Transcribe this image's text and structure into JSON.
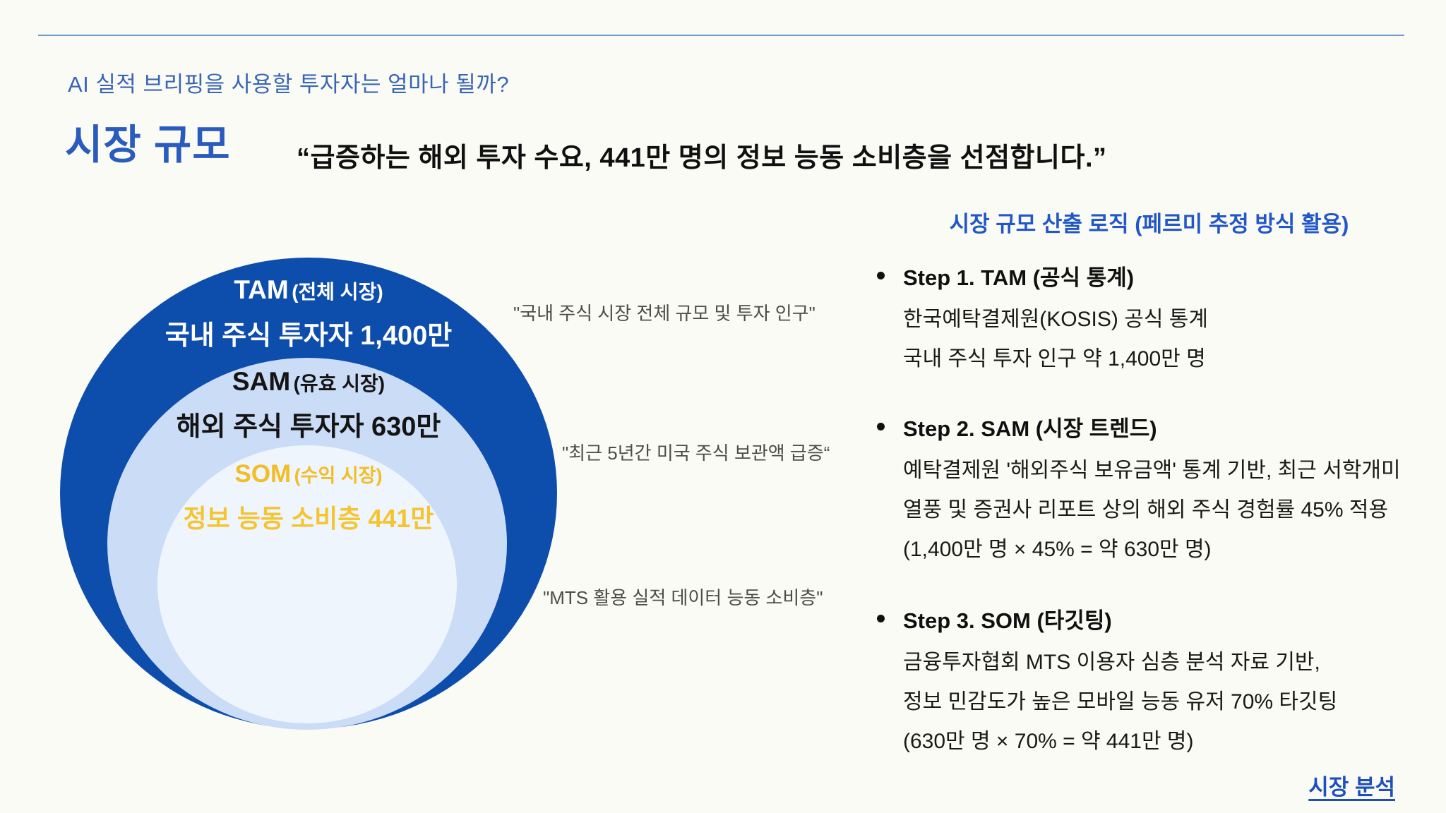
{
  "page": {
    "kicker": "AI 실적 브리핑을 사용할 투자자는 얼마나 될까?",
    "title": "시장 규모",
    "quote": "“급증하는 해외 투자 수요, 441만 명의 정보 능동 소비층을 선점합니다.”"
  },
  "venn": {
    "tam": {
      "label": "TAM",
      "sublabel": "(전체 시장)",
      "value": "국내 주식 투자자 1,400만"
    },
    "sam": {
      "label": "SAM",
      "sublabel": "(유효 시장)",
      "value": "해외 주식 투자자 630만"
    },
    "som": {
      "label": "SOM",
      "sublabel": "(수익 시장)",
      "value": "정보 능동 소비층 441만"
    },
    "annotations": [
      "\"국내 주식 시장 전체 규모 및 투자 인구\"",
      "\"최근 5년간 미국 주식 보관액 급증“",
      "\"MTS 활용 실적 데이터 능동 소비층\""
    ]
  },
  "logic_panel": {
    "title": "시장 규모 산출 로직 (페르미 추정 방식 활용)",
    "steps": [
      {
        "heading": "Step 1. TAM (공식 통계)",
        "lines": [
          "한국예탁결제원(KOSIS) 공식 통계",
          "국내 주식 투자 인구 약 1,400만 명"
        ]
      },
      {
        "heading": "Step 2. SAM (시장 트렌드)",
        "lines": [
          "예탁결제원 '해외주식 보유금액' 통계 기반, 최근 서학개미",
          "열풍 및 증권사 리포트 상의 해외 주식 경험률 45% 적용",
          "(1,400만 명 × 45% = 약 630만 명)"
        ]
      },
      {
        "heading": "Step 3. SOM (타깃팅)",
        "lines": [
          "금융투자협회 MTS 이용자 심층 분석 자료 기반,",
          "정보 민감도가 높은 모바일 능동 유저 70% 타깃팅",
          "(630만 명 × 70% = 약 441만 명)"
        ]
      }
    ],
    "link": "시장 분석"
  },
  "colors": {
    "background": "#fbfbf5",
    "top_rule": "#6f9cc8",
    "kicker_blue": "#3866b4",
    "title_blue": "#2a5cbe",
    "panel_title_blue": "#2257c8",
    "link_blue": "#1d50bd",
    "tam_fill": "#0d4dab",
    "sam_fill": "#cbdcf7",
    "som_fill": "#eef5fd",
    "som_text_gold": "#f2bd27",
    "annotation_gray": "#4c4c4c"
  }
}
